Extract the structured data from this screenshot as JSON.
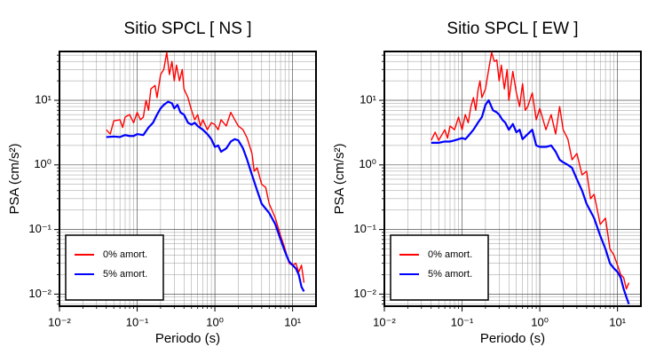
{
  "chart_data": [
    {
      "type": "line",
      "title": "Sitio SPCL [ NS ]",
      "xlabel": "Periodo (s)",
      "ylabel": "PSA (cm/s²)",
      "xscale": "log",
      "yscale": "log",
      "xlim": [
        0.01,
        20
      ],
      "ylim": [
        0.0065,
        57
      ],
      "xticks": [
        {
          "value": 0.01,
          "label": "10⁻²"
        },
        {
          "value": 0.1,
          "label": "10⁻¹"
        },
        {
          "value": 1,
          "label": "10⁰"
        },
        {
          "value": 10,
          "label": "10¹"
        }
      ],
      "yticks": [
        {
          "value": 0.01,
          "label": "10⁻²"
        },
        {
          "value": 0.1,
          "label": "10⁻¹"
        },
        {
          "value": 1,
          "label": "10⁰"
        },
        {
          "value": 10,
          "label": "10¹"
        }
      ],
      "grid": true,
      "legend": "lower left",
      "series": [
        {
          "name": "0% amort.",
          "color": "#ff0000",
          "x": [
            0.04,
            0.045,
            0.05,
            0.06,
            0.065,
            0.07,
            0.08,
            0.09,
            0.1,
            0.11,
            0.12,
            0.13,
            0.14,
            0.15,
            0.17,
            0.18,
            0.2,
            0.22,
            0.24,
            0.26,
            0.28,
            0.3,
            0.32,
            0.35,
            0.38,
            0.4,
            0.45,
            0.5,
            0.55,
            0.6,
            0.65,
            0.7,
            0.8,
            0.9,
            1.0,
            1.1,
            1.2,
            1.4,
            1.6,
            1.8,
            2.0,
            2.3,
            2.6,
            3.0,
            3.2,
            3.5,
            4,
            4.5,
            5,
            6,
            7,
            8,
            9,
            10,
            11,
            12,
            13,
            14
          ],
          "values": [
            3.5,
            3.0,
            4.8,
            5,
            3.8,
            5.5,
            6,
            4.5,
            6.5,
            5,
            5.5,
            10,
            7,
            15,
            17,
            11,
            25,
            30,
            55,
            25,
            40,
            20,
            35,
            20,
            30,
            15,
            11,
            7,
            5,
            6,
            4,
            5,
            3.5,
            4.5,
            4.2,
            3.5,
            5,
            4,
            6.5,
            5,
            4,
            3.5,
            2.6,
            1.5,
            0.8,
            0.9,
            0.5,
            0.45,
            0.25,
            0.15,
            0.08,
            0.05,
            0.03,
            0.028,
            0.03,
            0.022,
            0.028,
            0.015
          ]
        },
        {
          "name": "5% amort.",
          "color": "#0000ff",
          "x": [
            0.04,
            0.05,
            0.06,
            0.07,
            0.08,
            0.09,
            0.1,
            0.12,
            0.14,
            0.16,
            0.18,
            0.2,
            0.22,
            0.25,
            0.28,
            0.3,
            0.33,
            0.36,
            0.4,
            0.45,
            0.5,
            0.55,
            0.6,
            0.7,
            0.8,
            0.9,
            1.0,
            1.1,
            1.2,
            1.4,
            1.6,
            1.8,
            2.0,
            2.3,
            2.6,
            3.0,
            3.5,
            4,
            5,
            6,
            7,
            8,
            9,
            10,
            11,
            12,
            13,
            14
          ],
          "values": [
            2.7,
            2.75,
            2.7,
            2.9,
            2.8,
            2.8,
            3.0,
            2.9,
            3.8,
            4.5,
            6,
            7.5,
            8.5,
            9.5,
            9,
            7.5,
            8.5,
            6.5,
            6,
            4.5,
            4.2,
            4.5,
            4,
            3.5,
            3.0,
            2.5,
            1.9,
            2.0,
            1.6,
            1.8,
            2.3,
            2.5,
            2.4,
            1.8,
            1.2,
            0.7,
            0.4,
            0.25,
            0.18,
            0.12,
            0.07,
            0.045,
            0.032,
            0.028,
            0.025,
            0.02,
            0.013,
            0.011
          ]
        }
      ]
    },
    {
      "type": "line",
      "title": "Sitio SPCL [ EW ]",
      "xlabel": "Periodo (s)",
      "ylabel": "PSA (cm/s²)",
      "xscale": "log",
      "yscale": "log",
      "xlim": [
        0.01,
        20
      ],
      "ylim": [
        0.0065,
        57
      ],
      "xticks": [
        {
          "value": 0.01,
          "label": "10⁻²"
        },
        {
          "value": 0.1,
          "label": "10⁻¹"
        },
        {
          "value": 1,
          "label": "10⁰"
        },
        {
          "value": 10,
          "label": "10¹"
        }
      ],
      "yticks": [
        {
          "value": 0.01,
          "label": "10⁻²"
        },
        {
          "value": 0.1,
          "label": "10⁻¹"
        },
        {
          "value": 1,
          "label": "10⁰"
        },
        {
          "value": 10,
          "label": "10¹"
        }
      ],
      "grid": true,
      "legend": "lower left",
      "series": [
        {
          "name": "0% amort.",
          "color": "#ff0000",
          "x": [
            0.04,
            0.045,
            0.05,
            0.06,
            0.065,
            0.07,
            0.08,
            0.09,
            0.1,
            0.11,
            0.12,
            0.13,
            0.14,
            0.15,
            0.16,
            0.17,
            0.18,
            0.2,
            0.22,
            0.24,
            0.26,
            0.28,
            0.3,
            0.32,
            0.35,
            0.38,
            0.4,
            0.45,
            0.5,
            0.55,
            0.6,
            0.65,
            0.7,
            0.8,
            0.9,
            1.0,
            1.2,
            1.4,
            1.6,
            1.8,
            2.0,
            2.3,
            2.6,
            3,
            3.5,
            4,
            4.5,
            5,
            6,
            7,
            8,
            9,
            10,
            11,
            12,
            13,
            14
          ],
          "values": [
            2.4,
            3.2,
            2.4,
            3.5,
            2.6,
            4,
            3.5,
            5.5,
            3.5,
            6,
            4.5,
            8,
            11,
            7,
            14,
            20,
            11,
            15,
            30,
            55,
            40,
            42,
            20,
            35,
            15,
            30,
            10,
            28,
            13,
            8,
            18,
            7,
            8,
            13,
            5,
            7.5,
            3.5,
            6,
            3,
            8,
            3.5,
            2.5,
            1.2,
            1.5,
            0.7,
            0.8,
            0.3,
            0.35,
            0.12,
            0.15,
            0.05,
            0.04,
            0.028,
            0.02,
            0.018,
            0.012,
            0.015
          ]
        },
        {
          "name": "5% amort.",
          "color": "#0000ff",
          "x": [
            0.04,
            0.05,
            0.06,
            0.07,
            0.08,
            0.09,
            0.1,
            0.11,
            0.12,
            0.14,
            0.16,
            0.18,
            0.2,
            0.22,
            0.25,
            0.28,
            0.3,
            0.33,
            0.36,
            0.4,
            0.45,
            0.5,
            0.55,
            0.6,
            0.7,
            0.8,
            0.9,
            1.0,
            1.2,
            1.4,
            1.6,
            1.8,
            2.0,
            2.3,
            2.6,
            3,
            3.5,
            4,
            5,
            6,
            7,
            8,
            9,
            10,
            11,
            12,
            13,
            14
          ],
          "values": [
            2.2,
            2.2,
            2.3,
            2.3,
            2.4,
            2.5,
            2.6,
            2.5,
            2.8,
            3.5,
            4.5,
            5.5,
            8.5,
            10,
            7,
            6.5,
            6,
            5,
            4.5,
            3.5,
            4.3,
            3.2,
            3.5,
            2.5,
            3.0,
            3.5,
            2.0,
            1.9,
            1.9,
            2.0,
            1.6,
            1.2,
            1.1,
            1.0,
            0.9,
            0.6,
            0.4,
            0.25,
            0.15,
            0.08,
            0.05,
            0.03,
            0.025,
            0.022,
            0.018,
            0.012,
            0.009,
            0.007
          ]
        }
      ]
    }
  ]
}
